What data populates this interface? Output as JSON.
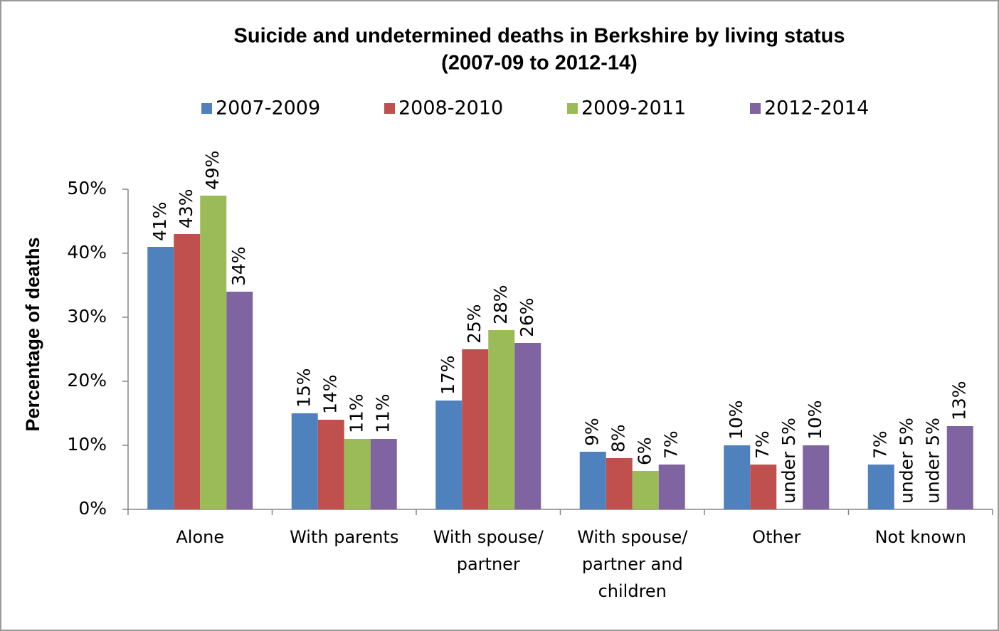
{
  "chart_data": {
    "type": "bar",
    "title": "Suicide and undetermined deaths in Berkshire by living status",
    "subtitle": "(2007-09 to 2012-14)",
    "y_label": "Percentage of deaths",
    "categories": [
      "Alone",
      "With parents",
      "With spouse/ partner",
      "With spouse/ partner and children",
      "Other",
      "Not known"
    ],
    "series": [
      {
        "name": "2007-2009",
        "color": "#4f81bd",
        "values": [
          41,
          15,
          17,
          9,
          10,
          7
        ],
        "value_labels": [
          "41%",
          "15%",
          "17%",
          "9%",
          "10%",
          "7%"
        ]
      },
      {
        "name": "2008-2010",
        "color": "#c0504d",
        "values": [
          43,
          14,
          25,
          8,
          7,
          null
        ],
        "value_labels": [
          "43%",
          "14%",
          "25%",
          "8%",
          "7%",
          "under 5%"
        ]
      },
      {
        "name": "2009-2011",
        "color": "#9bbb59",
        "values": [
          49,
          11,
          28,
          6,
          null,
          null
        ],
        "value_labels": [
          "49%",
          "11%",
          "28%",
          "6%",
          "under 5%",
          "under 5%"
        ]
      },
      {
        "name": "2012-2014",
        "color": "#8064a2",
        "values": [
          34,
          11,
          26,
          7,
          10,
          13
        ],
        "value_labels": [
          "34%",
          "11%",
          "26%",
          "7%",
          "10%",
          "13%"
        ]
      }
    ],
    "ylim": [
      0,
      50
    ],
    "yticks": [
      {
        "value": 0,
        "label": "0%"
      },
      {
        "value": 10,
        "label": "10%"
      },
      {
        "value": 20,
        "label": "20%"
      },
      {
        "value": 30,
        "label": "30%"
      },
      {
        "value": 40,
        "label": "40%"
      },
      {
        "value": 50,
        "label": "50%"
      }
    ],
    "legend": "top",
    "grid": false
  }
}
